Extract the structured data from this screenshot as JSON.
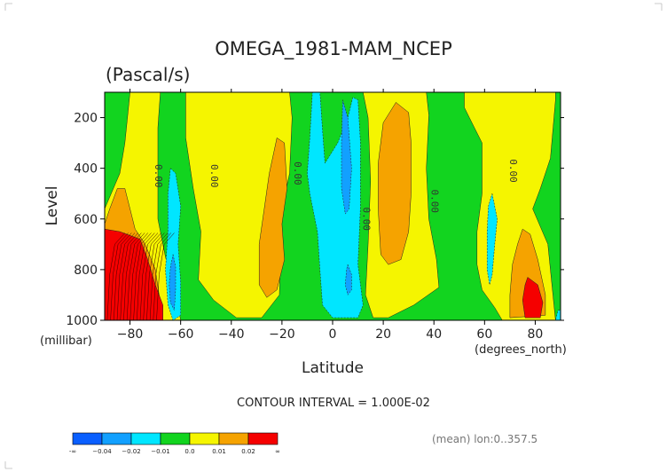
{
  "chart_data": {
    "type": "heatmap",
    "title": "OMEGA_1981-MAM_NCEP",
    "subtitle": "(Pascal/s)",
    "xlabel": "Latitude",
    "xunit": "(degrees_north)",
    "ylabel": "Level",
    "yunit": "(millibar)",
    "xlim": [
      -90,
      90
    ],
    "ylim": [
      1000,
      100
    ],
    "x_ticks": [
      -80,
      -60,
      -40,
      -20,
      0,
      20,
      40,
      60,
      80
    ],
    "x_tick_labels": [
      "−80",
      "−60",
      "−40",
      "−20",
      "0",
      "20",
      "40",
      "60",
      "80"
    ],
    "y_ticks": [
      200,
      400,
      600,
      800,
      1000
    ],
    "contour_interval_label": "CONTOUR INTERVAL = 1.000E-02",
    "footnote": "(mean) lon:0..357.5",
    "contour_labels": [
      {
        "text": "0.00",
        "x": -70,
        "y": 430
      },
      {
        "text": "0.00",
        "x": -48,
        "y": 430
      },
      {
        "text": "0.00",
        "x": -15,
        "y": 420
      },
      {
        "text": "0.00",
        "x": 12,
        "y": 600
      },
      {
        "text": "0.00",
        "x": 39,
        "y": 530
      },
      {
        "text": "0.00",
        "x": 70,
        "y": 410
      }
    ],
    "legend": {
      "colors": [
        "#0a5fff",
        "#12a0ff",
        "#00e6ff",
        "#12d41f",
        "#f5f500",
        "#f5a300",
        "#f50000"
      ],
      "boundary_labels": [
        "-∞",
        "−0.04",
        "−0.02",
        "−0.01",
        "0.0",
        "0.01",
        "0.02",
        "∞"
      ]
    },
    "level_colors": {
      "lt_-0.01": "#00e6ff",
      "lt_-0.02": "#12a0ff",
      "neg_small": "#12d41f",
      "pos_small": "#f5f500",
      "gt_0.01": "#f5a300",
      "gt_0.02": "#f50000"
    },
    "regions": [
      {
        "level": "neg_small",
        "note": "background",
        "points": [
          [
            -90,
            100
          ],
          [
            90,
            100
          ],
          [
            90,
            1000
          ],
          [
            -90,
            1000
          ]
        ]
      },
      {
        "level": "pos_small",
        "points": [
          [
            -80,
            100
          ],
          [
            -68,
            100
          ],
          [
            -69,
            240
          ],
          [
            -69,
            600
          ],
          [
            -66,
            750
          ],
          [
            -62,
            900
          ],
          [
            -60,
            1000
          ],
          [
            -90,
            1000
          ],
          [
            -90,
            560
          ],
          [
            -84,
            420
          ],
          [
            -82,
            300
          ],
          [
            -80,
            100
          ]
        ]
      },
      {
        "level": "gt_0.01",
        "points": [
          [
            -90,
            620
          ],
          [
            -88,
            560
          ],
          [
            -85,
            480
          ],
          [
            -82,
            480
          ],
          [
            -80,
            560
          ],
          [
            -78,
            640
          ],
          [
            -74,
            700
          ],
          [
            -70,
            800
          ],
          [
            -67,
            1000
          ],
          [
            -90,
            1000
          ]
        ]
      },
      {
        "level": "gt_0.02",
        "points": [
          [
            -90,
            640
          ],
          [
            -84,
            650
          ],
          [
            -76,
            680
          ],
          [
            -73,
            760
          ],
          [
            -70,
            860
          ],
          [
            -67,
            940
          ],
          [
            -67,
            1000
          ],
          [
            -90,
            1000
          ]
        ]
      },
      {
        "level": "pos_small",
        "points": [
          [
            -58,
            100
          ],
          [
            -17,
            100
          ],
          [
            -16,
            200
          ],
          [
            -17,
            420
          ],
          [
            -20,
            560
          ],
          [
            -21,
            900
          ],
          [
            -28,
            990
          ],
          [
            -38,
            990
          ],
          [
            -47,
            920
          ],
          [
            -53,
            840
          ],
          [
            -52,
            650
          ],
          [
            -55,
            480
          ],
          [
            -58,
            280
          ],
          [
            -58,
            100
          ]
        ]
      },
      {
        "level": "gt_0.01",
        "points": [
          [
            -22,
            280
          ],
          [
            -19,
            300
          ],
          [
            -18,
            480
          ],
          [
            -20,
            620
          ],
          [
            -19,
            760
          ],
          [
            -22,
            880
          ],
          [
            -26,
            910
          ],
          [
            -29,
            860
          ],
          [
            -29,
            700
          ],
          [
            -27,
            560
          ],
          [
            -25,
            420
          ],
          [
            -22,
            280
          ]
        ]
      },
      {
        "level": "lt_-0.01",
        "points": [
          [
            -64,
            400
          ],
          [
            -62,
            420
          ],
          [
            -60,
            550
          ],
          [
            -61,
            700
          ],
          [
            -60,
            850
          ],
          [
            -60,
            980
          ],
          [
            -63,
            1000
          ],
          [
            -65,
            940
          ],
          [
            -66,
            800
          ],
          [
            -65,
            650
          ],
          [
            -65,
            500
          ],
          [
            -64,
            400
          ]
        ]
      },
      {
        "level": "lt_-0.02",
        "points": [
          [
            -63,
            740
          ],
          [
            -62,
            790
          ],
          [
            -62,
            880
          ],
          [
            -62.5,
            960
          ],
          [
            -64,
            930
          ],
          [
            -64.5,
            860
          ],
          [
            -64,
            790
          ]
        ]
      },
      {
        "level": "lt_-0.01",
        "points": [
          [
            -8,
            100
          ],
          [
            -5,
            100
          ],
          [
            -4,
            250
          ],
          [
            -3,
            380
          ],
          [
            2,
            300
          ],
          [
            6,
            200
          ],
          [
            8,
            120
          ],
          [
            10,
            130
          ],
          [
            11,
            300
          ],
          [
            11,
            550
          ],
          [
            10,
            780
          ],
          [
            12,
            940
          ],
          [
            10,
            990
          ],
          [
            0,
            990
          ],
          [
            -4,
            940
          ],
          [
            -5,
            800
          ],
          [
            -6,
            650
          ],
          [
            -9,
            500
          ],
          [
            -10,
            420
          ],
          [
            -9,
            280
          ],
          [
            -8,
            100
          ]
        ]
      },
      {
        "level": "lt_-0.02",
        "points": [
          [
            4,
            130
          ],
          [
            6,
            200
          ],
          [
            7.5,
            400
          ],
          [
            6.5,
            560
          ],
          [
            5,
            580
          ],
          [
            3.5,
            480
          ],
          [
            3.5,
            300
          ],
          [
            4,
            130
          ]
        ]
      },
      {
        "level": "lt_-0.02",
        "points": [
          [
            6,
            780
          ],
          [
            7.5,
            820
          ],
          [
            7.5,
            880
          ],
          [
            6,
            900
          ],
          [
            5,
            860
          ],
          [
            5.5,
            800
          ]
        ]
      },
      {
        "level": "pos_small",
        "points": [
          [
            12,
            100
          ],
          [
            37,
            100
          ],
          [
            38,
            190
          ],
          [
            37,
            400
          ],
          [
            38,
            600
          ],
          [
            41,
            760
          ],
          [
            42,
            870
          ],
          [
            32,
            940
          ],
          [
            22,
            990
          ],
          [
            16,
            990
          ],
          [
            13,
            900
          ],
          [
            14,
            700
          ],
          [
            15,
            450
          ],
          [
            14,
            200
          ],
          [
            12,
            100
          ]
        ]
      },
      {
        "level": "gt_0.01",
        "points": [
          [
            25,
            140
          ],
          [
            30,
            180
          ],
          [
            31,
            300
          ],
          [
            31,
            500
          ],
          [
            30,
            650
          ],
          [
            27,
            760
          ],
          [
            22,
            780
          ],
          [
            19,
            740
          ],
          [
            18,
            560
          ],
          [
            18,
            380
          ],
          [
            20,
            220
          ],
          [
            25,
            140
          ]
        ]
      },
      {
        "level": "pos_small",
        "points": [
          [
            52,
            100
          ],
          [
            88,
            100
          ],
          [
            88,
            130
          ],
          [
            86,
            360
          ],
          [
            82,
            480
          ],
          [
            79,
            560
          ],
          [
            85,
            700
          ],
          [
            87,
            900
          ],
          [
            88,
            1000
          ],
          [
            67,
            1000
          ],
          [
            64,
            950
          ],
          [
            59,
            880
          ],
          [
            57,
            780
          ],
          [
            57,
            650
          ],
          [
            59,
            500
          ],
          [
            59,
            300
          ],
          [
            56,
            240
          ],
          [
            54,
            200
          ],
          [
            52,
            160
          ],
          [
            52,
            100
          ]
        ]
      },
      {
        "level": "lt_-0.01",
        "points": [
          [
            63,
            500
          ],
          [
            65,
            600
          ],
          [
            64,
            700
          ],
          [
            63,
            820
          ],
          [
            62,
            860
          ],
          [
            61,
            800
          ],
          [
            61,
            650
          ],
          [
            61.5,
            550
          ]
        ]
      },
      {
        "level": "gt_0.01",
        "points": [
          [
            75,
            640
          ],
          [
            78,
            660
          ],
          [
            81,
            760
          ],
          [
            84,
            900
          ],
          [
            84,
            980
          ],
          [
            70,
            990
          ],
          [
            70,
            900
          ],
          [
            71,
            780
          ],
          [
            73,
            700
          ]
        ]
      },
      {
        "level": "gt_0.02",
        "points": [
          [
            77,
            830
          ],
          [
            81,
            860
          ],
          [
            83,
            930
          ],
          [
            82,
            990
          ],
          [
            76,
            990
          ],
          [
            75,
            920
          ],
          [
            76,
            860
          ]
        ]
      },
      {
        "level": "lt_-0.01",
        "points": [
          [
            89,
            960
          ],
          [
            90,
            960
          ],
          [
            90,
            1000
          ],
          [
            88,
            1000
          ]
        ]
      }
    ]
  }
}
